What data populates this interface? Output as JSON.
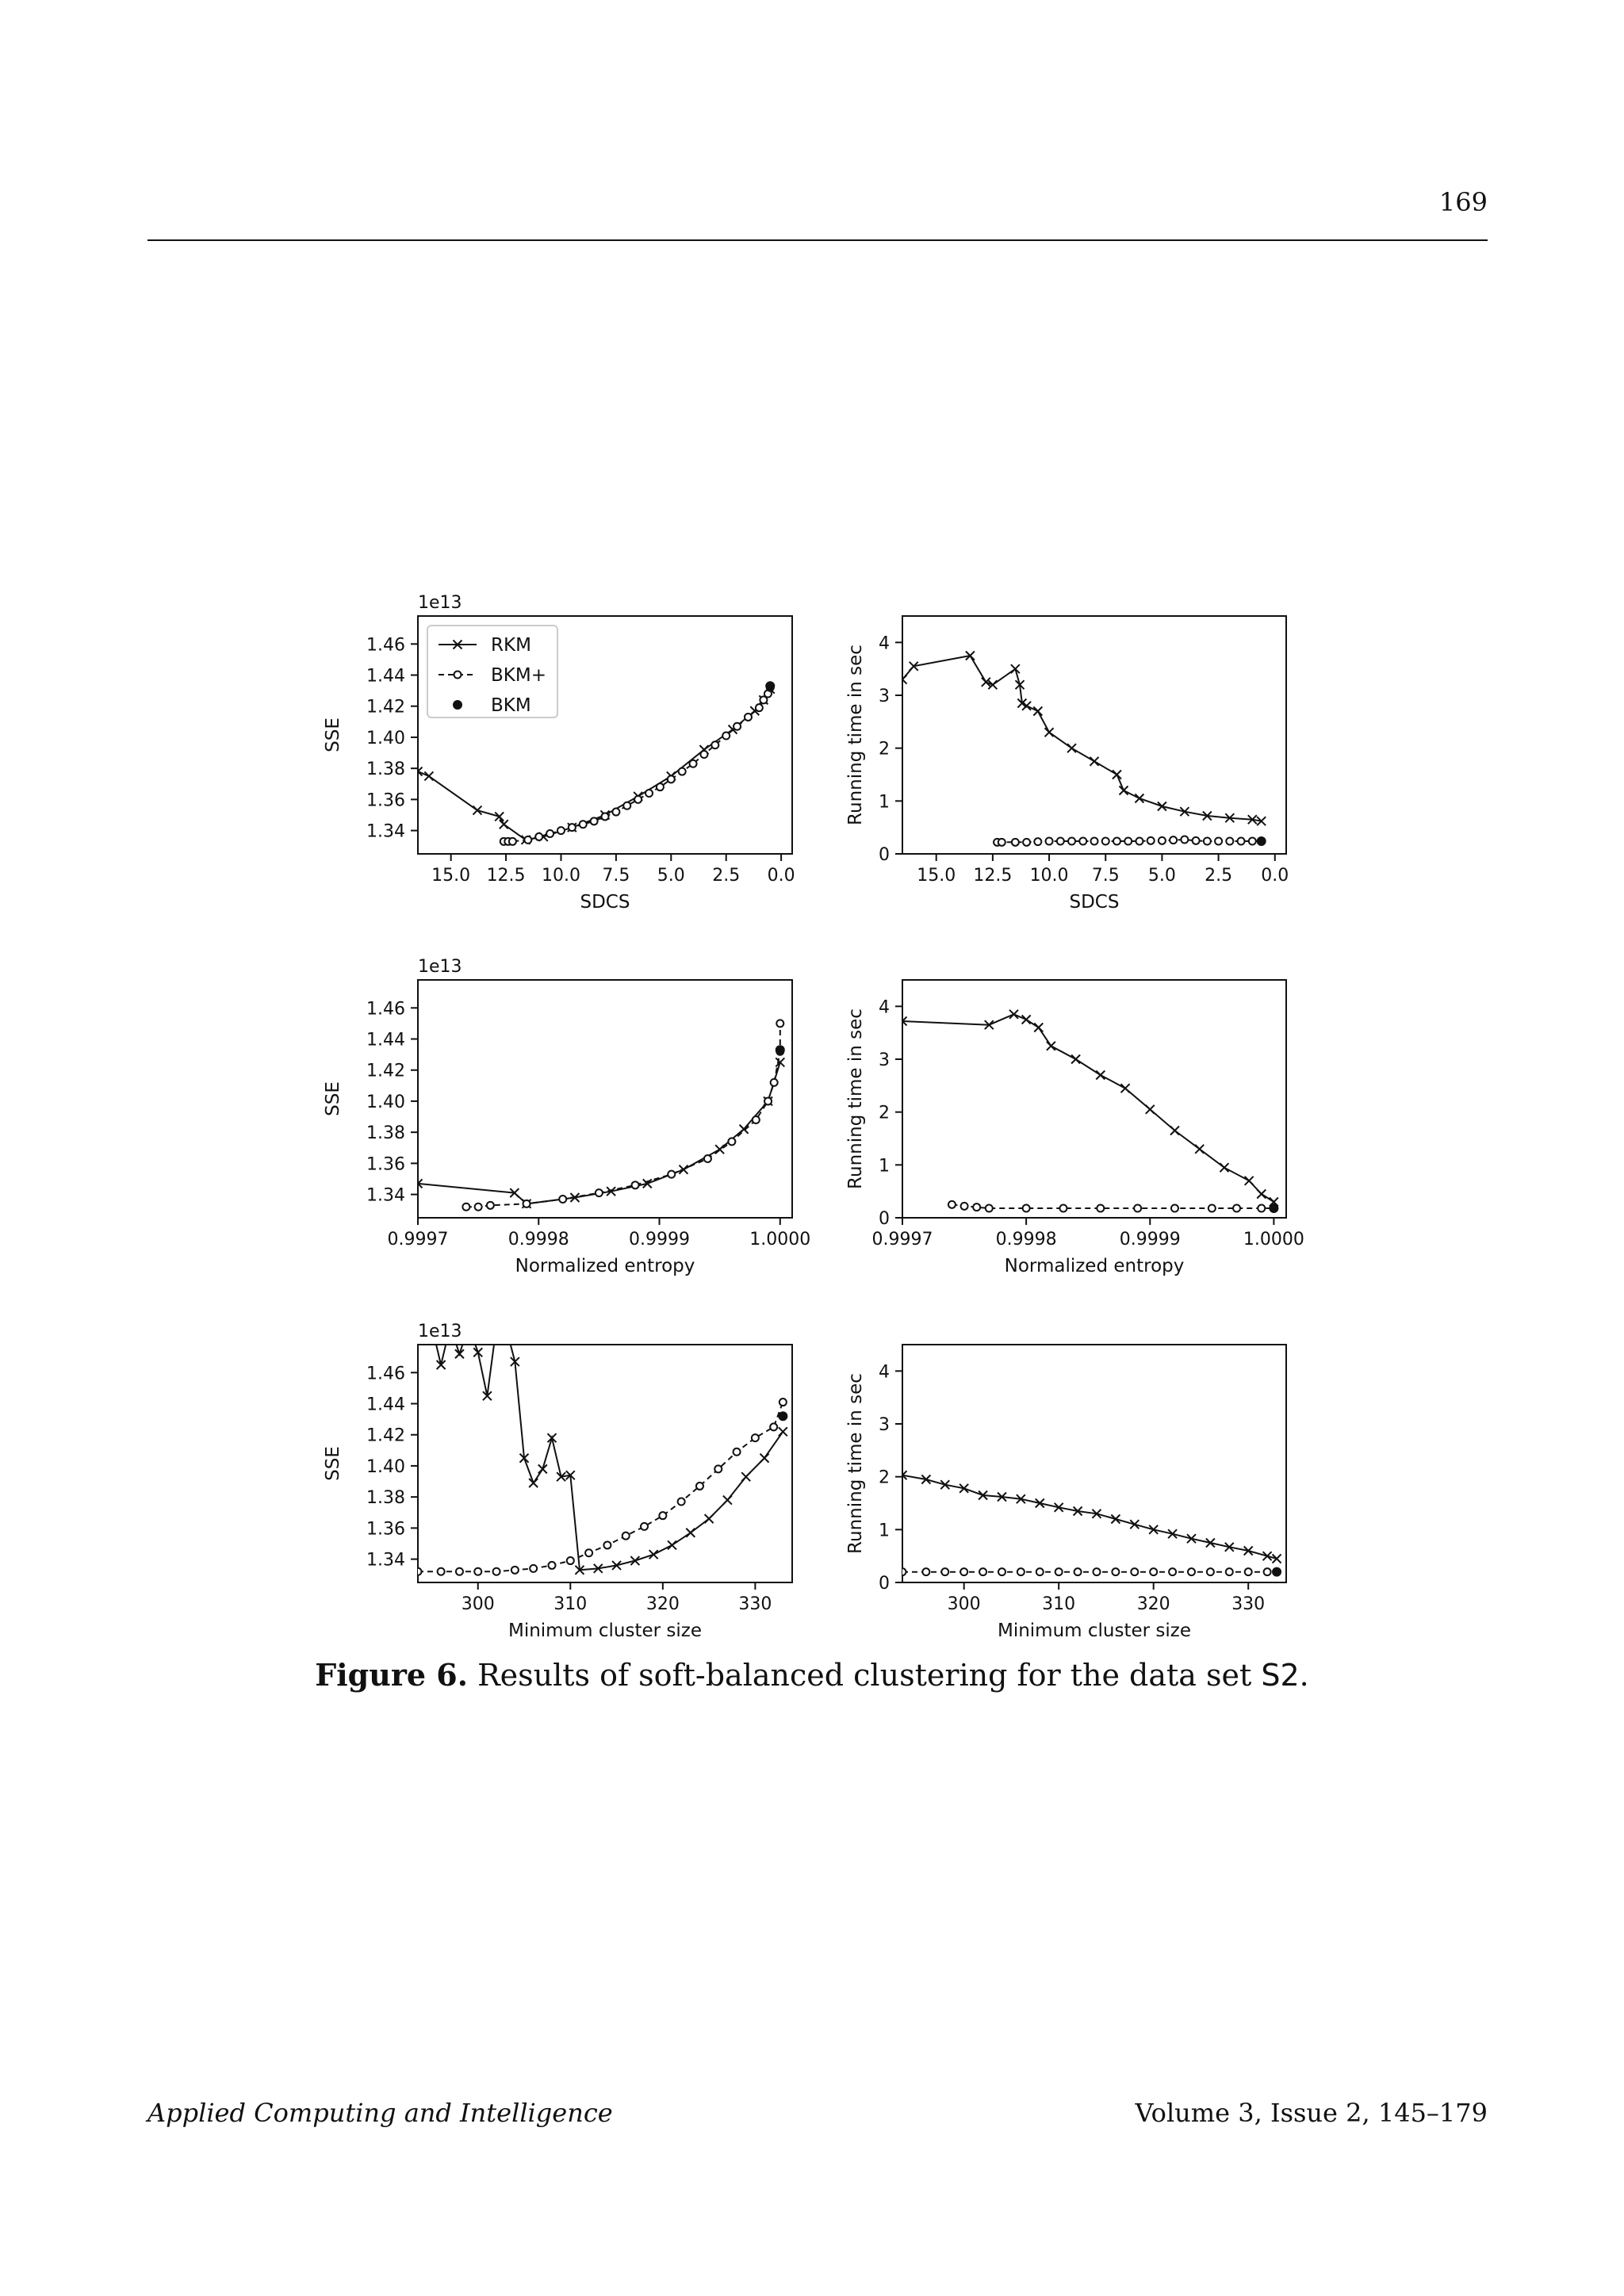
{
  "page": {
    "number": "169",
    "journal": "Applied Computing and Intelligence",
    "volume": "Volume 3, Issue 2, 145–179"
  },
  "caption": {
    "label": "Figure 6.",
    "text_before": "Results of soft-balanced clustering for the data set ",
    "code": "S2",
    "text_after": "."
  },
  "legend": {
    "placement": "upper-left",
    "entries": [
      {
        "label": "RKM",
        "marker": "x",
        "line": "solid"
      },
      {
        "label": "BKM+",
        "marker": "o",
        "line": "dashed"
      },
      {
        "label": "BKM",
        "marker": "filled-dot",
        "line": "none"
      }
    ]
  },
  "chart_data": [
    {
      "type": "line",
      "xlabel": "SDCS",
      "ylabel": "SSE",
      "offset_text": "1e13",
      "x_inverted": true,
      "xlim": [
        16.5,
        -0.5
      ],
      "ylim": [
        1.325,
        1.478
      ],
      "xticks": [
        15,
        12.5,
        10,
        7.5,
        5,
        2.5,
        0
      ],
      "xtick_labels": [
        "15.0",
        "12.5",
        "10.0",
        "7.5",
        "5.0",
        "2.5",
        "0.0"
      ],
      "yticks": [
        1.34,
        1.36,
        1.38,
        1.4,
        1.42,
        1.44,
        1.46
      ],
      "ytick_labels": [
        "1.34",
        "1.36",
        "1.38",
        "1.40",
        "1.42",
        "1.44",
        "1.46"
      ],
      "series": [
        {
          "name": "RKM",
          "x": [
            16.5,
            16.0,
            13.8,
            12.8,
            12.6,
            11.6,
            10.8,
            9.5,
            8.0,
            6.5,
            5.0,
            3.5,
            2.2,
            1.2,
            0.8,
            0.5
          ],
          "y": [
            1.378,
            1.375,
            1.353,
            1.349,
            1.344,
            1.334,
            1.336,
            1.342,
            1.35,
            1.362,
            1.375,
            1.392,
            1.405,
            1.417,
            1.424,
            1.431
          ]
        },
        {
          "name": "BKM+",
          "x": [
            12.6,
            12.4,
            12.2,
            11.5,
            11.0,
            10.5,
            10.0,
            9.5,
            9.0,
            8.5,
            8.0,
            7.5,
            7.0,
            6.5,
            6.0,
            5.5,
            5.0,
            4.5,
            4.0,
            3.5,
            3.0,
            2.5,
            2.0,
            1.5,
            1.0,
            0.8,
            0.6,
            0.5
          ],
          "y": [
            1.333,
            1.333,
            1.333,
            1.334,
            1.336,
            1.338,
            1.34,
            1.342,
            1.344,
            1.346,
            1.349,
            1.352,
            1.356,
            1.36,
            1.364,
            1.368,
            1.373,
            1.378,
            1.383,
            1.389,
            1.395,
            1.401,
            1.407,
            1.413,
            1.419,
            1.424,
            1.428,
            1.432
          ]
        },
        {
          "name": "BKM",
          "x": [
            0.5
          ],
          "y": [
            1.433
          ]
        }
      ]
    },
    {
      "type": "line",
      "xlabel": "SDCS",
      "ylabel": "Running time in sec",
      "x_inverted": true,
      "xlim": [
        16.5,
        -0.5
      ],
      "ylim": [
        0,
        4.5
      ],
      "xticks": [
        15,
        12.5,
        10,
        7.5,
        5,
        2.5,
        0
      ],
      "xtick_labels": [
        "15.0",
        "12.5",
        "10.0",
        "7.5",
        "5.0",
        "2.5",
        "0.0"
      ],
      "yticks": [
        0,
        1,
        2,
        3,
        4
      ],
      "ytick_labels": [
        "0",
        "1",
        "2",
        "3",
        "4"
      ],
      "series": [
        {
          "name": "RKM",
          "x": [
            16.5,
            16.0,
            13.5,
            12.8,
            12.5,
            11.5,
            11.3,
            11.2,
            11.0,
            10.5,
            10.0,
            9.0,
            8.0,
            7.0,
            6.7,
            6.0,
            5.0,
            4.0,
            3.0,
            2.0,
            1.0,
            0.6
          ],
          "y": [
            3.3,
            3.55,
            3.75,
            3.25,
            3.2,
            3.5,
            3.2,
            2.85,
            2.8,
            2.7,
            2.3,
            2.0,
            1.75,
            1.5,
            1.2,
            1.05,
            0.9,
            0.8,
            0.72,
            0.68,
            0.65,
            0.62
          ]
        },
        {
          "name": "BKM+",
          "x": [
            12.3,
            12.1,
            11.5,
            11.0,
            10.5,
            10.0,
            9.5,
            9.0,
            8.5,
            8.0,
            7.5,
            7.0,
            6.5,
            6.0,
            5.5,
            5.0,
            4.5,
            4.0,
            3.5,
            3.0,
            2.5,
            2.0,
            1.5,
            1.0,
            0.6
          ],
          "y": [
            0.22,
            0.22,
            0.22,
            0.22,
            0.23,
            0.24,
            0.24,
            0.24,
            0.24,
            0.24,
            0.24,
            0.24,
            0.24,
            0.24,
            0.25,
            0.25,
            0.26,
            0.27,
            0.25,
            0.24,
            0.24,
            0.24,
            0.24,
            0.24,
            0.24
          ]
        },
        {
          "name": "BKM",
          "x": [
            0.6
          ],
          "y": [
            0.24
          ]
        }
      ]
    },
    {
      "type": "line",
      "xlabel": "Normalized entropy",
      "ylabel": "SSE",
      "offset_text": "1e13",
      "xlim": [
        0.9997,
        1.00001
      ],
      "ylim": [
        1.325,
        1.478
      ],
      "xticks": [
        0.9997,
        0.9998,
        0.9999,
        1.0
      ],
      "xtick_labels": [
        "0.9997",
        "0.9998",
        "0.9999",
        "1.0000"
      ],
      "yticks": [
        1.34,
        1.36,
        1.38,
        1.4,
        1.42,
        1.44,
        1.46
      ],
      "ytick_labels": [
        "1.34",
        "1.36",
        "1.38",
        "1.40",
        "1.42",
        "1.44",
        "1.46"
      ],
      "series": [
        {
          "name": "RKM",
          "x": [
            0.9997,
            0.99978,
            0.99979,
            0.99983,
            0.99986,
            0.99989,
            0.99992,
            0.99995,
            0.99997,
            0.99999,
            1.0
          ],
          "y": [
            1.347,
            1.341,
            1.334,
            1.338,
            1.342,
            1.347,
            1.356,
            1.369,
            1.382,
            1.4,
            1.425
          ]
        },
        {
          "name": "BKM+",
          "x": [
            0.99974,
            0.99975,
            0.99976,
            0.99979,
            0.99982,
            0.99985,
            0.99988,
            0.99991,
            0.99994,
            0.99996,
            0.99998,
            0.99999,
            0.999995,
            1.0,
            1.0
          ],
          "y": [
            1.332,
            1.332,
            1.333,
            1.334,
            1.337,
            1.341,
            1.346,
            1.353,
            1.363,
            1.374,
            1.388,
            1.4,
            1.412,
            1.432,
            1.45
          ]
        },
        {
          "name": "BKM",
          "x": [
            1.0
          ],
          "y": [
            1.433
          ]
        }
      ]
    },
    {
      "type": "line",
      "xlabel": "Normalized entropy",
      "ylabel": "Running time in sec",
      "xlim": [
        0.9997,
        1.00001
      ],
      "ylim": [
        0,
        4.5
      ],
      "xticks": [
        0.9997,
        0.9998,
        0.9999,
        1.0
      ],
      "xtick_labels": [
        "0.9997",
        "0.9998",
        "0.9999",
        "1.0000"
      ],
      "yticks": [
        0,
        1,
        2,
        3,
        4
      ],
      "ytick_labels": [
        "0",
        "1",
        "2",
        "3",
        "4"
      ],
      "series": [
        {
          "name": "RKM",
          "x": [
            0.9997,
            0.99977,
            0.99979,
            0.9998,
            0.99981,
            0.99982,
            0.99984,
            0.99986,
            0.99988,
            0.9999,
            0.99992,
            0.99994,
            0.99996,
            0.99998,
            0.99999,
            1.0
          ],
          "y": [
            3.72,
            3.65,
            3.85,
            3.75,
            3.6,
            3.25,
            3.0,
            2.7,
            2.45,
            2.05,
            1.65,
            1.3,
            0.95,
            0.7,
            0.45,
            0.3
          ]
        },
        {
          "name": "BKM+",
          "x": [
            0.99974,
            0.99975,
            0.99976,
            0.99977,
            0.9998,
            0.99983,
            0.99986,
            0.99989,
            0.99992,
            0.99995,
            0.99997,
            0.99999,
            1.0
          ],
          "y": [
            0.25,
            0.22,
            0.2,
            0.18,
            0.18,
            0.18,
            0.18,
            0.18,
            0.18,
            0.18,
            0.18,
            0.18,
            0.18
          ]
        },
        {
          "name": "BKM",
          "x": [
            1.0
          ],
          "y": [
            0.18
          ]
        }
      ]
    },
    {
      "type": "line",
      "xlabel": "Minimum cluster size",
      "ylabel": "SSE",
      "offset_text": "1e13",
      "xlim": [
        293.5,
        334
      ],
      "ylim": [
        1.325,
        1.478
      ],
      "xticks": [
        300,
        310,
        320,
        330
      ],
      "xtick_labels": [
        "300",
        "310",
        "320",
        "330"
      ],
      "yticks": [
        1.34,
        1.36,
        1.38,
        1.4,
        1.42,
        1.44,
        1.46
      ],
      "ytick_labels": [
        "1.34",
        "1.36",
        "1.38",
        "1.40",
        "1.42",
        "1.44",
        "1.46"
      ],
      "series": [
        {
          "name": "RKM",
          "x": [
            295,
            296,
            297,
            298,
            299,
            300,
            301,
            302,
            303,
            304,
            305,
            306,
            307,
            308,
            309,
            310,
            311,
            313,
            315,
            317,
            319,
            321,
            323,
            325,
            327,
            329,
            331,
            333
          ],
          "y": [
            1.49,
            1.465,
            1.49,
            1.472,
            1.49,
            1.473,
            1.445,
            1.49,
            1.49,
            1.467,
            1.405,
            1.389,
            1.398,
            1.418,
            1.393,
            1.394,
            1.333,
            1.334,
            1.336,
            1.339,
            1.343,
            1.349,
            1.357,
            1.366,
            1.378,
            1.393,
            1.405,
            1.422
          ]
        },
        {
          "name": "BKM+",
          "x": [
            293.5,
            296,
            298,
            300,
            302,
            304,
            306,
            308,
            310,
            312,
            314,
            316,
            318,
            320,
            322,
            324,
            326,
            328,
            330,
            332,
            333
          ],
          "y": [
            1.332,
            1.332,
            1.332,
            1.332,
            1.332,
            1.333,
            1.334,
            1.336,
            1.339,
            1.344,
            1.349,
            1.355,
            1.361,
            1.368,
            1.377,
            1.387,
            1.398,
            1.409,
            1.418,
            1.425,
            1.441
          ]
        },
        {
          "name": "BKM",
          "x": [
            333
          ],
          "y": [
            1.432
          ]
        }
      ]
    },
    {
      "type": "line",
      "xlabel": "Minimum cluster size",
      "ylabel": "Running time in sec",
      "xlim": [
        293.5,
        334
      ],
      "ylim": [
        0,
        4.5
      ],
      "xticks": [
        300,
        310,
        320,
        330
      ],
      "xtick_labels": [
        "300",
        "310",
        "320",
        "330"
      ],
      "yticks": [
        0,
        1,
        2,
        3,
        4
      ],
      "ytick_labels": [
        "0",
        "1",
        "2",
        "3",
        "4"
      ],
      "series": [
        {
          "name": "RKM",
          "x": [
            293.5,
            296,
            298,
            300,
            302,
            304,
            306,
            308,
            310,
            312,
            314,
            316,
            318,
            320,
            322,
            324,
            326,
            328,
            330,
            332,
            333
          ],
          "y": [
            2.03,
            1.95,
            1.85,
            1.78,
            1.65,
            1.62,
            1.58,
            1.5,
            1.42,
            1.35,
            1.3,
            1.2,
            1.1,
            1.0,
            0.92,
            0.83,
            0.75,
            0.67,
            0.6,
            0.5,
            0.45
          ]
        },
        {
          "name": "BKM+",
          "x": [
            293.5,
            296,
            298,
            300,
            302,
            304,
            306,
            308,
            310,
            312,
            314,
            316,
            318,
            320,
            322,
            324,
            326,
            328,
            330,
            332,
            333
          ],
          "y": [
            0.2,
            0.2,
            0.2,
            0.2,
            0.2,
            0.2,
            0.2,
            0.2,
            0.2,
            0.2,
            0.2,
            0.2,
            0.2,
            0.2,
            0.2,
            0.2,
            0.2,
            0.2,
            0.2,
            0.2,
            0.2
          ]
        },
        {
          "name": "BKM",
          "x": [
            333
          ],
          "y": [
            0.2
          ]
        }
      ]
    }
  ]
}
